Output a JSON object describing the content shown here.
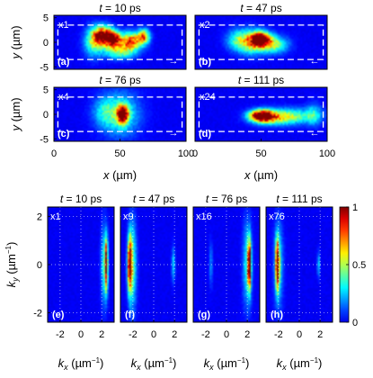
{
  "chart_data": [
    {
      "type": "heatmap",
      "description": "Real-space intensity snapshots at four times",
      "xlabel": "x (µm)",
      "ylabel": "y (µm)",
      "xlim": [
        0,
        100
      ],
      "ylim": [
        -5.5,
        5.5
      ],
      "x_ticks": [
        "0",
        "50",
        "100"
      ],
      "y_ticks": [
        "5",
        "0",
        "-5"
      ],
      "panels": [
        {
          "label": "(a)",
          "time": "t = 10 ps",
          "scale": "x1",
          "arrow": "→",
          "blobs": [
            {
              "x": 37,
              "y": 1.3,
              "sx": 5,
              "sy": 1.3,
              "a": 1.0
            },
            {
              "x": 45,
              "y": 0.5,
              "sx": 4,
              "sy": 1.2,
              "a": 0.85
            },
            {
              "x": 58,
              "y": 0.2,
              "sx": 6,
              "sy": 1.2,
              "a": 0.8
            },
            {
              "x": 68,
              "y": 1.2,
              "sx": 3,
              "sy": 1.0,
              "a": 0.65
            },
            {
              "x": 50,
              "y": -2.0,
              "sx": 8,
              "sy": 1.0,
              "a": 0.4
            },
            {
              "x": 30,
              "y": 0.0,
              "sx": 5,
              "sy": 2.0,
              "a": 0.4
            }
          ]
        },
        {
          "label": "(b)",
          "time": "t = 47 ps",
          "scale": "x2",
          "arrow": "←",
          "blobs": [
            {
              "x": 50,
              "y": 0.6,
              "sx": 5,
              "sy": 1.0,
              "a": 1.0
            },
            {
              "x": 43,
              "y": 0.0,
              "sx": 7,
              "sy": 1.6,
              "a": 0.55
            },
            {
              "x": 60,
              "y": -0.5,
              "sx": 7,
              "sy": 1.2,
              "a": 0.45
            },
            {
              "x": 32,
              "y": 0.5,
              "sx": 6,
              "sy": 1.5,
              "a": 0.3
            }
          ]
        },
        {
          "label": "(c)",
          "time": "t = 76 ps",
          "scale": "x4",
          "arrow": "→",
          "blobs": [
            {
              "x": 52,
              "y": 0.0,
              "sx": 3,
              "sy": 1.2,
              "a": 1.0
            },
            {
              "x": 50,
              "y": 0.0,
              "sx": 10,
              "sy": 3.0,
              "a": 0.35
            },
            {
              "x": 38,
              "y": 0.5,
              "sx": 6,
              "sy": 2.0,
              "a": 0.2
            }
          ]
        },
        {
          "label": "(d)",
          "time": "t = 111 ps",
          "scale": "x24",
          "arrow": "←",
          "blobs": [
            {
              "x": 50,
              "y": -0.3,
              "sx": 6,
              "sy": 0.8,
              "a": 1.0
            },
            {
              "x": 58,
              "y": -0.6,
              "sx": 10,
              "sy": 1.0,
              "a": 0.5
            },
            {
              "x": 75,
              "y": -0.4,
              "sx": 12,
              "sy": 1.1,
              "a": 0.35
            },
            {
              "x": 90,
              "y": 0.0,
              "sx": 4,
              "sy": 1.5,
              "a": 0.25
            }
          ]
        }
      ]
    },
    {
      "type": "heatmap",
      "description": "Momentum-space intensity at four times",
      "xlabel": "k_x (µm⁻¹)",
      "ylabel": "k_y (µm⁻¹)",
      "xlim": [
        -3.2,
        3.2
      ],
      "ylim": [
        -2.4,
        2.4
      ],
      "x_ticks": [
        "-2",
        "0",
        "2"
      ],
      "y_ticks": [
        "2",
        "0",
        "-2"
      ],
      "colorbar": {
        "min": 0,
        "max": 1,
        "ticks": [
          "1",
          "0.5",
          "0"
        ]
      },
      "panels": [
        {
          "label": "(e)",
          "time": "t = 10 ps",
          "scale": "x1",
          "blobs": [
            {
              "x": 2.45,
              "y": 0.0,
              "sx": 0.1,
              "sy": 0.75,
              "a": 1.0
            },
            {
              "x": 2.2,
              "y": 0.0,
              "sx": 0.2,
              "sy": 1.1,
              "a": 0.3
            }
          ]
        },
        {
          "label": "(f)",
          "time": "t = 47 ps",
          "scale": "x9",
          "blobs": [
            {
              "x": -2.3,
              "y": 0.0,
              "sx": 0.15,
              "sy": 0.8,
              "a": 1.0
            },
            {
              "x": -2.0,
              "y": 0.0,
              "sx": 0.25,
              "sy": 1.3,
              "a": 0.35
            },
            {
              "x": 1.9,
              "y": 0.0,
              "sx": 0.12,
              "sy": 0.5,
              "a": 0.25
            }
          ]
        },
        {
          "label": "(g)",
          "time": "t = 76 ps",
          "scale": "x16",
          "blobs": [
            {
              "x": 2.2,
              "y": 0.0,
              "sx": 0.12,
              "sy": 0.7,
              "a": 0.95
            },
            {
              "x": 2.0,
              "y": 0.0,
              "sx": 0.3,
              "sy": 1.2,
              "a": 0.3
            },
            {
              "x": -1.5,
              "y": 0.0,
              "sx": 0.12,
              "sy": 0.6,
              "a": 0.18
            }
          ]
        },
        {
          "label": "(h)",
          "time": "t = 111 ps",
          "scale": "x76",
          "blobs": [
            {
              "x": -2.1,
              "y": 0.0,
              "sx": 0.12,
              "sy": 0.7,
              "a": 1.0
            },
            {
              "x": -2.0,
              "y": 0.0,
              "sx": 0.3,
              "sy": 1.2,
              "a": 0.3
            },
            {
              "x": 1.85,
              "y": 0.0,
              "sx": 0.08,
              "sy": 0.35,
              "a": 0.3
            }
          ]
        }
      ]
    }
  ],
  "colors": {
    "background": "#00008f",
    "dashed_box": "#ffffff",
    "grid": "#ffffff"
  }
}
